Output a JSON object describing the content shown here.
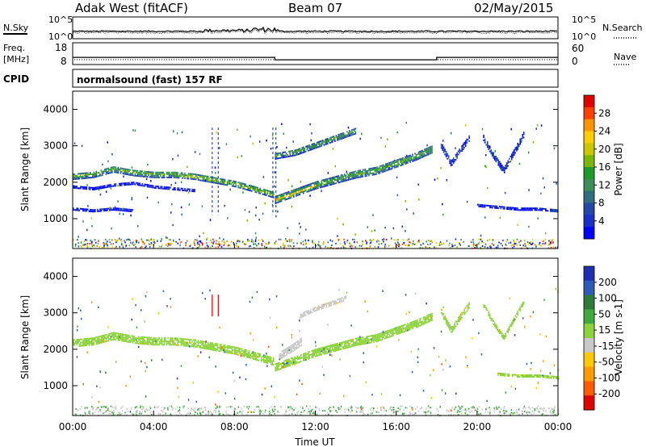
{
  "header": {
    "station": "Adak West (fitACF)",
    "beam": "Beam 07",
    "date": "02/May/2015"
  },
  "top_panels": {
    "nsky_label": "N.Sky",
    "nsearch_label": "N.Search",
    "freq_label_line1": "Freq.",
    "freq_label_line2": "[MHz]",
    "nave_label": "Nave",
    "cpid_label": "CPID",
    "cpid_text": "normalsound (fast) 157 RF",
    "noise_ticks_left": [
      "10^5",
      "10^0"
    ],
    "noise_ticks_right": [
      "10^5",
      "10^0"
    ],
    "freq_ticks": [
      "18",
      "8"
    ],
    "nave_ticks": [
      "60",
      "0"
    ]
  },
  "colorbars": {
    "power": {
      "label": "Power [dB]",
      "ticks": [
        "28",
        "24",
        "20",
        "16",
        "12",
        "8",
        "4"
      ],
      "colors": [
        "#e00000",
        "#ff4000",
        "#ff9400",
        "#ffcc00",
        "#c8c800",
        "#7ab800",
        "#1e9a28",
        "#3d8c5a",
        "#2f6f7d",
        "#2348a8",
        "#1a2fc8",
        "#0000ff"
      ]
    },
    "velocity": {
      "label": "Velocity [m s-1]",
      "ticks": [
        "200",
        "100",
        "50",
        "15",
        "-15",
        "-50",
        "-100",
        "-200"
      ],
      "colors": [
        "#1f2fb0",
        "#2c5cb8",
        "#2e7a3a",
        "#3caa3c",
        "#8cd23c",
        "#c8c8c8",
        "#ffc800",
        "#ff9a00",
        "#ff5a00",
        "#e00000"
      ]
    }
  },
  "chart_data": [
    {
      "type": "line",
      "title": "Adak West (fitACF) Beam 07 02/May/2015",
      "panel": "Freq. [MHz] / Nave",
      "x": [
        "00:00",
        "10:00",
        "10:00",
        "18:00",
        "18:00",
        "24:00"
      ],
      "series": [
        {
          "values": [
            11.3,
            11.3,
            10.2,
            10.2,
            11.3,
            11.3
          ]
        }
      ],
      "ylim": [
        8,
        18
      ]
    },
    {
      "type": "heatmap",
      "panel": "power",
      "xlabel": "",
      "ylabel": "Slant Range [km]",
      "xlim": [
        "00:00",
        "24:00"
      ],
      "ylim": [
        180,
        4500
      ],
      "yticks": [
        1000,
        2000,
        3000,
        4000
      ],
      "colorbar": "Power [dB]",
      "zlim": [
        0,
        32
      ],
      "bands": [
        {
          "x": [
            0,
            1,
            2,
            3,
            4,
            5,
            6,
            7,
            8,
            9,
            9.9
          ],
          "y": [
            2150,
            2200,
            2350,
            2250,
            2200,
            2200,
            2150,
            2050,
            1950,
            1800,
            1650
          ],
          "width": 180,
          "power": 15
        },
        {
          "x": [
            10,
            11,
            12,
            13,
            14,
            15,
            16,
            17,
            17.8
          ],
          "y": [
            1500,
            1700,
            1900,
            2050,
            2200,
            2300,
            2500,
            2700,
            2900
          ],
          "width": 200,
          "power": 15
        },
        {
          "x": [
            10,
            11,
            12,
            13,
            14
          ],
          "y": [
            2700,
            2800,
            3000,
            3200,
            3400
          ],
          "width": 160,
          "power": 14
        },
        {
          "x": [
            0,
            1,
            2,
            3
          ],
          "y": [
            1250,
            1200,
            1250,
            1200
          ],
          "width": 60,
          "power": 5
        },
        {
          "x": [
            20,
            21,
            22,
            23,
            24
          ],
          "y": [
            1350,
            1300,
            1250,
            1250,
            1200
          ],
          "width": 70,
          "power": 5
        },
        {
          "x": [
            20.3,
            20.8,
            21.3,
            21.8,
            22.3
          ],
          "y": [
            3200,
            2700,
            2300,
            2800,
            3300
          ],
          "width": 150,
          "power": 6
        },
        {
          "x": [
            18.2,
            18.7,
            19.2,
            19.6
          ],
          "y": [
            3000,
            2500,
            2900,
            3200
          ],
          "width": 160,
          "power": 6
        },
        {
          "x": [
            0,
            1,
            2,
            3,
            4,
            5,
            6
          ],
          "y": [
            1850,
            1800,
            1900,
            1950,
            1850,
            1800,
            1750
          ],
          "width": 50,
          "power": 4
        }
      ]
    },
    {
      "type": "heatmap",
      "panel": "velocity",
      "xlabel": "Time UT",
      "ylabel": "Slant Range [km]",
      "xticks": [
        "00:00",
        "04:00",
        "08:00",
        "12:00",
        "16:00",
        "20:00",
        "00:00"
      ],
      "ylim": [
        180,
        4500
      ],
      "yticks": [
        1000,
        2000,
        3000,
        4000
      ],
      "colorbar": "Velocity [m s-1]",
      "zlim": [
        -250,
        250
      ],
      "bands": [
        {
          "x": [
            0,
            1,
            2,
            3,
            4,
            5,
            6,
            7,
            8,
            9,
            9.9
          ],
          "y": [
            2150,
            2200,
            2350,
            2250,
            2200,
            2200,
            2150,
            2050,
            1950,
            1800,
            1650
          ],
          "width": 200,
          "velocity": 0
        },
        {
          "x": [
            10,
            11,
            12,
            13,
            14,
            15,
            16,
            17,
            17.8
          ],
          "y": [
            1500,
            1700,
            1900,
            2050,
            2200,
            2300,
            2500,
            2700,
            2900
          ],
          "width": 220,
          "velocity": 0
        },
        {
          "x": [
            11.2,
            12,
            12.8,
            13.5
          ],
          "y": [
            2900,
            3100,
            3250,
            3400
          ],
          "width": 120,
          "velocity": -40
        },
        {
          "x": [
            10.2,
            10.8,
            11.3
          ],
          "y": [
            1800,
            2000,
            2200
          ],
          "width": 200,
          "velocity": -40
        },
        {
          "x": [
            20.3,
            20.8,
            21.3,
            21.8,
            22.3
          ],
          "y": [
            3200,
            2700,
            2300,
            2800,
            3300
          ],
          "width": 120,
          "velocity": 0
        },
        {
          "x": [
            18.2,
            18.7,
            19.2,
            19.6
          ],
          "y": [
            3000,
            2500,
            2900,
            3200
          ],
          "width": 140,
          "velocity": 0
        },
        {
          "x": [
            21,
            22,
            23,
            24
          ],
          "y": [
            1300,
            1250,
            1250,
            1200
          ],
          "width": 60,
          "velocity": 0
        }
      ]
    }
  ],
  "axes": {
    "range_label": "Slant Range [km]",
    "time_label": "Time UT",
    "time_ticks": [
      "00:00",
      "04:00",
      "08:00",
      "12:00",
      "16:00",
      "20:00",
      "00:00"
    ],
    "range_ticks": [
      "1000",
      "2000",
      "3000",
      "4000"
    ]
  }
}
